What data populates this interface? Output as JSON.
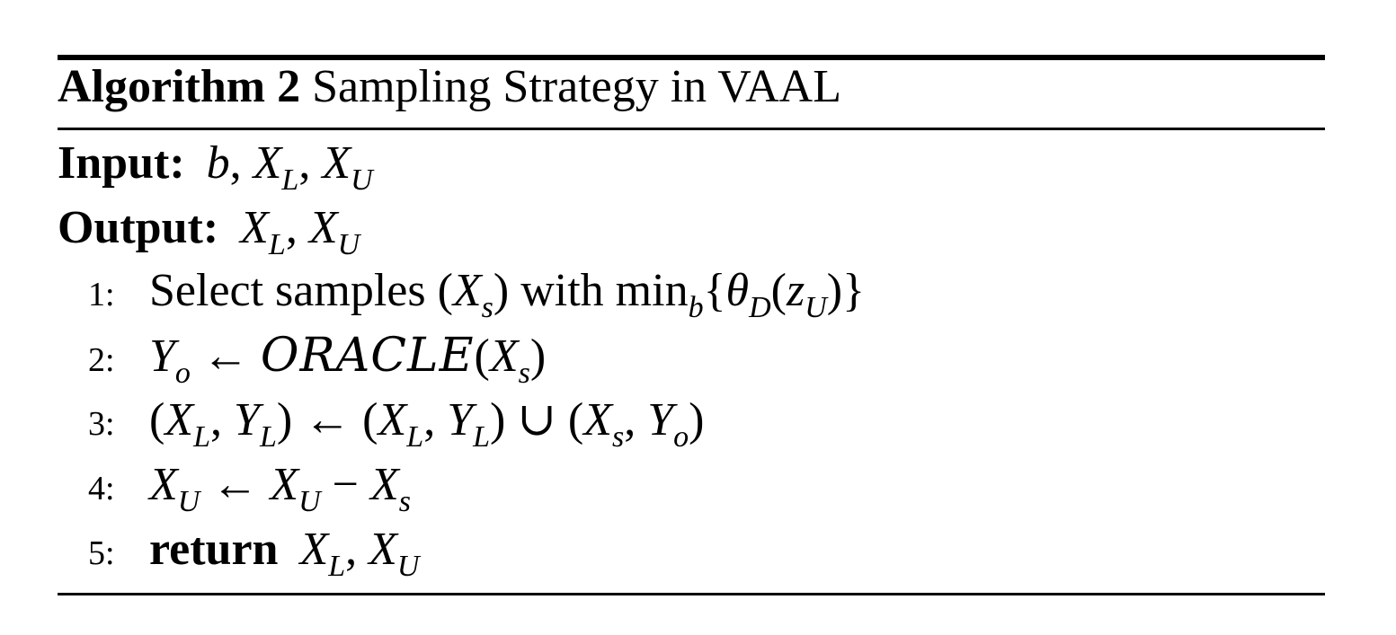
{
  "algorithm": {
    "label": "Algorithm 2",
    "title": "Sampling Strategy in VAAL"
  },
  "input": {
    "label": "Input:",
    "value": "b, X_L, X_U"
  },
  "output": {
    "label": "Output:",
    "value": "X_L, X_U"
  },
  "steps": [
    {
      "num": "1:",
      "text": "Select samples (X_s) with min_b{θ_D(z_U)}"
    },
    {
      "num": "2:",
      "text": "Y_o ← ORACLE(X_s)"
    },
    {
      "num": "3:",
      "text": "(X_L, Y_L) ← (X_L, Y_L) ∪ (X_s, Y_o)"
    },
    {
      "num": "4:",
      "text": "X_U ← X_U − X_s"
    },
    {
      "num": "5:",
      "keyword": "return",
      "text": "X_L, X_U"
    }
  ]
}
